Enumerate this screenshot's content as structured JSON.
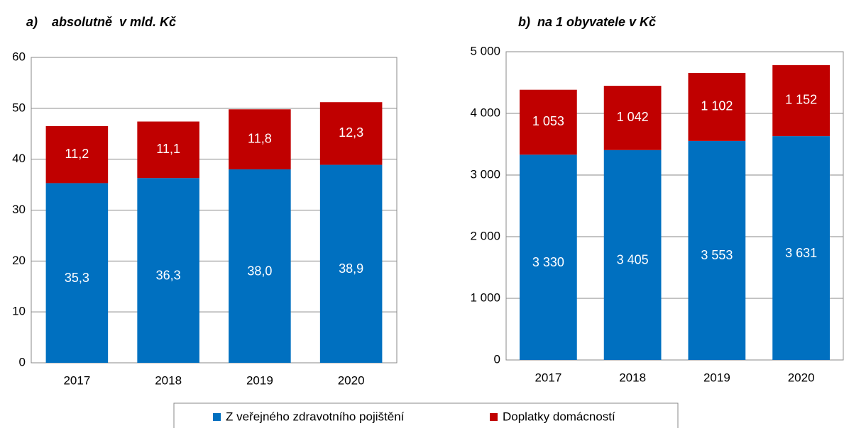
{
  "chart_data": [
    {
      "type": "bar",
      "stacked": true,
      "title": "a)    absolutně  v mld. Kč",
      "categories": [
        "2017",
        "2018",
        "2019",
        "2020"
      ],
      "series": [
        {
          "name": "Z veřejného zdravotního pojištění",
          "color": "#0070c0",
          "values": [
            35.3,
            36.3,
            38.0,
            38.9
          ],
          "value_labels": [
            "35,3",
            "36,3",
            "38,0",
            "38,9"
          ]
        },
        {
          "name": "Doplatky domácností",
          "color": "#c00000",
          "values": [
            11.2,
            11.1,
            11.8,
            12.3
          ],
          "value_labels": [
            "11,2",
            "11,1",
            "11,8",
            "12,3"
          ]
        }
      ],
      "ylim": [
        0,
        60
      ],
      "yticks": [
        0,
        10,
        20,
        30,
        40,
        50,
        60
      ],
      "grid": true
    },
    {
      "type": "bar",
      "stacked": true,
      "title": "b)  na 1 obyvatele v Kč",
      "categories": [
        "2017",
        "2018",
        "2019",
        "2020"
      ],
      "series": [
        {
          "color": "#0070c0",
          "values": [
            3330,
            3405,
            3553,
            3631
          ],
          "value_labels": [
            "3 330",
            "3 405",
            "3 553",
            "3 631"
          ]
        },
        {
          "color": "#c00000",
          "values": [
            1053,
            1042,
            1102,
            1152
          ],
          "value_labels": [
            "1 053",
            "1 042",
            "1 102",
            "1 152"
          ]
        }
      ],
      "ylim": [
        0,
        5000
      ],
      "yticks": [
        0,
        {
          "value": 1000,
          "label": "1 000"
        },
        {
          "value": 2000,
          "label": "2 000"
        },
        {
          "value": 3000,
          "label": "3 000"
        },
        {
          "value": 4000,
          "label": "4 000"
        },
        {
          "value": 5000,
          "label": "5 000"
        }
      ],
      "grid": true
    }
  ]
}
